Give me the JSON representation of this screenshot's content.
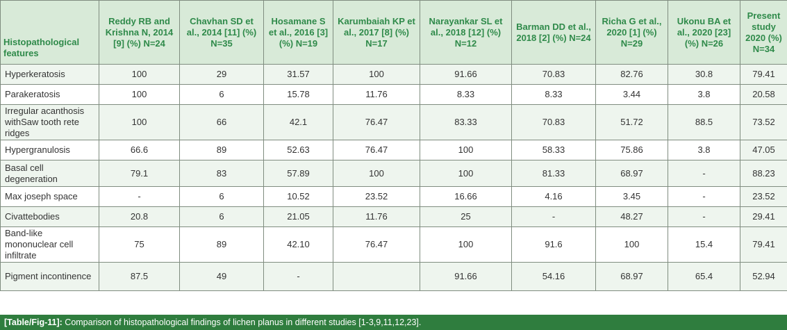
{
  "table": {
    "headers": [
      "Histopathological features",
      "Reddy RB and Krishna N, 2014 [9] (%) N=24",
      "Chavhan SD et al., 2014 [11] (%) N=35",
      "Hosamane S et al., 2016 [3] (%) N=19",
      "Karumbaiah KP et al., 2017 [8] (%) N=17",
      "Narayankar SL et al., 2018 [12] (%) N=12",
      "Barman DD et al., 2018 [2] (%) N=24",
      "Richa G et al., 2020 [1] (%) N=29",
      "Ukonu BA et al., 2020 [23] (%) N=26",
      "Present study 2020 (%) N=34"
    ],
    "rows": [
      [
        "Hyperkeratosis",
        "100",
        "29",
        "31.57",
        "100",
        "91.66",
        "70.83",
        "82.76",
        "30.8",
        "79.41"
      ],
      [
        "Parakeratosis",
        "100",
        "6",
        "15.78",
        "11.76",
        "8.33",
        "8.33",
        "3.44",
        "3.8",
        "20.58"
      ],
      [
        "Irregular acanthosis withSaw tooth rete ridges",
        "100",
        "66",
        "42.1",
        "76.47",
        "83.33",
        "70.83",
        "51.72",
        "88.5",
        "73.52"
      ],
      [
        "Hypergranulosis",
        "66.6",
        "89",
        "52.63",
        "76.47",
        "100",
        "58.33",
        "75.86",
        "3.8",
        "47.05"
      ],
      [
        "Basal cell degeneration",
        "79.1",
        "83",
        "57.89",
        "100",
        "100",
        "81.33",
        "68.97",
        "-",
        "88.23"
      ],
      [
        "Max joseph space",
        "-",
        "6",
        "10.52",
        "23.52",
        "16.66",
        "4.16",
        "3.45",
        "-",
        "23.52"
      ],
      [
        "Civattebodies",
        "20.8",
        "6",
        "21.05",
        "11.76",
        "25",
        "-",
        "48.27",
        "-",
        "29.41"
      ],
      [
        "Band-like mononuclear cell infiltrate",
        "75",
        "89",
        "42.10",
        "76.47",
        "100",
        "91.6",
        "100",
        "15.4",
        "79.41"
      ],
      [
        "Pigment incontinence",
        "87.5",
        "49",
        "-",
        "",
        "91.66",
        "54.16",
        "68.97",
        "65.4",
        "52.94"
      ]
    ]
  },
  "caption": {
    "label": "[Table/Fig-11]:",
    "text": " Comparison of histopathological findings of lichen planus in different studies [1-3,9,11,12,23]."
  },
  "colors": {
    "header_bg": "#d8ead8",
    "header_text": "#2f8a4a",
    "stripe": "#eef5ee",
    "caption_bg": "#2f7d3e"
  }
}
